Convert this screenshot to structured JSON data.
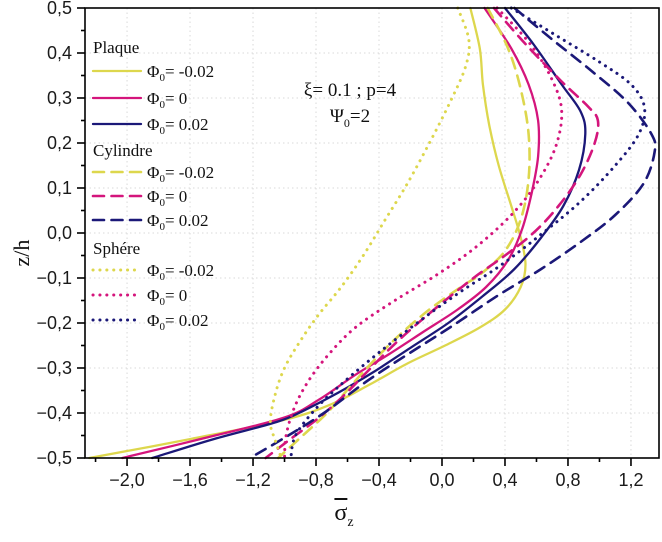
{
  "figure": {
    "background": "#ffffff",
    "plot_border_color": "#000000",
    "grid_color": "#d9d9d9",
    "tick_color": "#000000",
    "tick_label_color": "#1a1a1a"
  },
  "chart_data": {
    "type": "line",
    "title": "",
    "xlabel": {
      "base": "σ",
      "overbar": true,
      "sub": "z"
    },
    "ylabel": "z/h",
    "annotation": {
      "line1": "ξ= 0.1 ; p=4",
      "line2": {
        "sym": "Ψ",
        "sub": "0",
        "rest": "=2"
      }
    },
    "xlim": [
      -2.267,
      1.378
    ],
    "ylim": [
      -0.5,
      0.5
    ],
    "x_major_ticks": [
      -2.0,
      -1.6,
      -1.2,
      -0.8,
      -0.4,
      0.0,
      0.4,
      0.8,
      1.2
    ],
    "x_tick_labels": [
      "−2,0",
      "−1,6",
      "−1,2",
      "−0,8",
      "−0,4",
      "0,0",
      "0,4",
      "0,8",
      "1,2"
    ],
    "x_minor_ticks": [
      -2.2,
      -1.8,
      -1.4,
      -1.0,
      -0.6,
      -0.2,
      0.2,
      0.6,
      1.0
    ],
    "y_major_ticks": [
      0.5,
      0.4,
      0.3,
      0.2,
      0.1,
      0.0,
      -0.1,
      -0.2,
      -0.3,
      -0.4,
      -0.5
    ],
    "y_tick_labels": [
      "0,5",
      "0,4",
      "0,3",
      "0,2",
      "0,1",
      "0,0",
      "−0,1",
      "−0,2",
      "−0,3",
      "−0,4",
      "−0,5"
    ],
    "y_minor_ticks": [
      0.45,
      0.35,
      0.25,
      0.15,
      0.05,
      -0.05,
      -0.15,
      -0.25,
      -0.35,
      -0.45
    ],
    "grid": {
      "vertical_at": [
        -2.0,
        -1.6,
        -1.2,
        -0.8,
        -0.4,
        0.0,
        0.4,
        0.8,
        1.2
      ],
      "horizontal_at": [
        0.4,
        0.3,
        0.2,
        0.1,
        0.0,
        -0.1,
        -0.2,
        -0.3,
        -0.4
      ]
    },
    "colors": {
      "phi_neg": "#ddd74d",
      "phi_zero": "#d4157c",
      "phi_pos": "#1b1878"
    },
    "legend_groups": [
      {
        "name": "Plaque",
        "style": "solid",
        "entries": [
          {
            "sym": "Φ",
            "sub": "0",
            "label": "= -0.02",
            "color": "#ddd74d",
            "series_key": "plaque_neg"
          },
          {
            "sym": "Φ",
            "sub": "0",
            "label": "= 0",
            "color": "#d4157c",
            "series_key": "plaque_zero"
          },
          {
            "sym": "Φ",
            "sub": "0",
            "label": "= 0.02",
            "color": "#1b1878",
            "series_key": "plaque_pos"
          }
        ]
      },
      {
        "name": "Cylindre",
        "style": "dashed",
        "entries": [
          {
            "sym": "Φ",
            "sub": "0",
            "label": "= -0.02",
            "color": "#ddd74d",
            "series_key": "cyl_neg"
          },
          {
            "sym": "Φ",
            "sub": "0",
            "label": "= 0",
            "color": "#d4157c",
            "series_key": "cyl_zero"
          },
          {
            "sym": "Φ",
            "sub": "0",
            "label": "= 0.02",
            "color": "#1b1878",
            "series_key": "cyl_pos"
          }
        ]
      },
      {
        "name": "Sphére",
        "style": "dotted",
        "entries": [
          {
            "sym": "Φ",
            "sub": "0",
            "label": "= -0.02",
            "color": "#ddd74d",
            "series_key": "sph_neg"
          },
          {
            "sym": "Φ",
            "sub": "0",
            "label": "= 0",
            "color": "#d4157c",
            "series_key": "sph_zero"
          },
          {
            "sym": "Φ",
            "sub": "0",
            "label": "= 0.02",
            "color": "#1b1878",
            "series_key": "sph_pos"
          }
        ]
      }
    ],
    "series": [
      {
        "key": "plaque_neg",
        "group": "Plaque",
        "phi": "-0.02",
        "style": "solid",
        "color": "#ddd74d",
        "points": [
          [
            0.18,
            0.5
          ],
          [
            0.24,
            0.41
          ],
          [
            0.26,
            0.33
          ],
          [
            0.3,
            0.24
          ],
          [
            0.36,
            0.15
          ],
          [
            0.44,
            0.06
          ],
          [
            0.5,
            -0.01
          ],
          [
            0.53,
            -0.07
          ],
          [
            0.5,
            -0.12
          ],
          [
            0.4,
            -0.17
          ],
          [
            0.24,
            -0.21
          ],
          [
            0.02,
            -0.25
          ],
          [
            -0.22,
            -0.29
          ],
          [
            -0.45,
            -0.335
          ],
          [
            -0.7,
            -0.38
          ],
          [
            -1.0,
            -0.415
          ],
          [
            -1.6,
            -0.458
          ],
          [
            -2.24,
            -0.5
          ]
        ]
      },
      {
        "key": "plaque_zero",
        "group": "Plaque",
        "phi": "0",
        "style": "solid",
        "color": "#d4157c",
        "points": [
          [
            0.27,
            0.5
          ],
          [
            0.44,
            0.41
          ],
          [
            0.55,
            0.33
          ],
          [
            0.61,
            0.25
          ],
          [
            0.61,
            0.17
          ],
          [
            0.57,
            0.09
          ],
          [
            0.51,
            0.01
          ],
          [
            0.42,
            -0.06
          ],
          [
            0.28,
            -0.12
          ],
          [
            0.1,
            -0.17
          ],
          [
            -0.12,
            -0.22
          ],
          [
            -0.34,
            -0.27
          ],
          [
            -0.55,
            -0.315
          ],
          [
            -0.78,
            -0.37
          ],
          [
            -1.0,
            -0.41
          ],
          [
            -1.5,
            -0.455
          ],
          [
            -2.03,
            -0.5
          ]
        ]
      },
      {
        "key": "plaque_pos",
        "group": "Plaque",
        "phi": "0.02",
        "style": "solid",
        "color": "#1b1878",
        "points": [
          [
            0.4,
            0.5
          ],
          [
            0.58,
            0.42
          ],
          [
            0.76,
            0.33
          ],
          [
            0.88,
            0.27
          ],
          [
            0.91,
            0.22
          ],
          [
            0.87,
            0.14
          ],
          [
            0.77,
            0.06
          ],
          [
            0.63,
            -0.01
          ],
          [
            0.46,
            -0.08
          ],
          [
            0.26,
            -0.14
          ],
          [
            0.04,
            -0.2
          ],
          [
            -0.2,
            -0.255
          ],
          [
            -0.44,
            -0.31
          ],
          [
            -0.66,
            -0.355
          ],
          [
            -0.88,
            -0.395
          ],
          [
            -1.05,
            -0.42
          ],
          [
            -1.45,
            -0.458
          ],
          [
            -1.84,
            -0.5
          ]
        ]
      },
      {
        "key": "cyl_neg",
        "group": "Cylindre",
        "phi": "-0.02",
        "style": "dashed",
        "color": "#ddd74d",
        "points": [
          [
            0.29,
            0.5
          ],
          [
            0.42,
            0.41
          ],
          [
            0.5,
            0.32
          ],
          [
            0.55,
            0.22
          ],
          [
            0.55,
            0.12
          ],
          [
            0.5,
            0.03
          ],
          [
            0.4,
            -0.04
          ],
          [
            0.25,
            -0.09
          ],
          [
            0.12,
            -0.12
          ],
          [
            -0.08,
            -0.17
          ],
          [
            -0.28,
            -0.23
          ],
          [
            -0.45,
            -0.29
          ],
          [
            -0.58,
            -0.34
          ],
          [
            -0.73,
            -0.4
          ],
          [
            -0.9,
            -0.455
          ],
          [
            -1.04,
            -0.5
          ]
        ]
      },
      {
        "key": "cyl_zero",
        "group": "Cylindre",
        "phi": "0",
        "style": "dashed",
        "color": "#d4157c",
        "points": [
          [
            0.33,
            0.5
          ],
          [
            0.53,
            0.42
          ],
          [
            0.75,
            0.34
          ],
          [
            0.93,
            0.28
          ],
          [
            0.99,
            0.25
          ],
          [
            0.97,
            0.2
          ],
          [
            0.88,
            0.13
          ],
          [
            0.74,
            0.06
          ],
          [
            0.58,
            0.0
          ],
          [
            0.4,
            -0.05
          ],
          [
            0.2,
            -0.1
          ],
          [
            -0.05,
            -0.17
          ],
          [
            -0.28,
            -0.24
          ],
          [
            -0.48,
            -0.31
          ],
          [
            -0.62,
            -0.36
          ],
          [
            -0.78,
            -0.41
          ],
          [
            -0.97,
            -0.46
          ],
          [
            -1.12,
            -0.5
          ]
        ]
      },
      {
        "key": "cyl_pos",
        "group": "Cylindre",
        "phi": "0.02",
        "style": "dashed",
        "color": "#1b1878",
        "points": [
          [
            0.46,
            0.5
          ],
          [
            0.7,
            0.43
          ],
          [
            0.95,
            0.36
          ],
          [
            1.18,
            0.29
          ],
          [
            1.33,
            0.22
          ],
          [
            1.35,
            0.18
          ],
          [
            1.28,
            0.11
          ],
          [
            1.1,
            0.04
          ],
          [
            0.88,
            -0.02
          ],
          [
            0.63,
            -0.08
          ],
          [
            0.35,
            -0.14
          ],
          [
            0.05,
            -0.21
          ],
          [
            -0.22,
            -0.27
          ],
          [
            -0.48,
            -0.33
          ],
          [
            -0.75,
            -0.4
          ],
          [
            -1.0,
            -0.455
          ],
          [
            -1.22,
            -0.5
          ]
        ]
      },
      {
        "key": "sph_neg",
        "group": "Sphére",
        "phi": "-0.02",
        "style": "dotted",
        "color": "#ddd74d",
        "points": [
          [
            0.1,
            0.5
          ],
          [
            0.17,
            0.43
          ],
          [
            0.15,
            0.37
          ],
          [
            0.05,
            0.29
          ],
          [
            -0.08,
            0.2
          ],
          [
            -0.22,
            0.11
          ],
          [
            -0.36,
            0.03
          ],
          [
            -0.5,
            -0.05
          ],
          [
            -0.64,
            -0.12
          ],
          [
            -0.78,
            -0.18
          ],
          [
            -0.9,
            -0.24
          ],
          [
            -1.0,
            -0.3
          ],
          [
            -1.06,
            -0.36
          ],
          [
            -1.09,
            -0.42
          ],
          [
            -1.06,
            -0.46
          ],
          [
            -1.02,
            -0.5
          ]
        ]
      },
      {
        "key": "sph_zero",
        "group": "Sphére",
        "phi": "0",
        "style": "dotted",
        "color": "#d4157c",
        "points": [
          [
            0.35,
            0.5
          ],
          [
            0.56,
            0.42
          ],
          [
            0.7,
            0.34
          ],
          [
            0.76,
            0.27
          ],
          [
            0.72,
            0.19
          ],
          [
            0.6,
            0.11
          ],
          [
            0.44,
            0.04
          ],
          [
            0.22,
            -0.03
          ],
          [
            -0.02,
            -0.09
          ],
          [
            -0.3,
            -0.15
          ],
          [
            -0.55,
            -0.21
          ],
          [
            -0.72,
            -0.27
          ],
          [
            -0.85,
            -0.33
          ],
          [
            -0.94,
            -0.39
          ],
          [
            -0.99,
            -0.45
          ],
          [
            -1.0,
            -0.5
          ]
        ]
      },
      {
        "key": "sph_pos",
        "group": "Sphére",
        "phi": "0.02",
        "style": "dotted",
        "color": "#1b1878",
        "points": [
          [
            0.44,
            0.5
          ],
          [
            0.72,
            0.44
          ],
          [
            1.0,
            0.38
          ],
          [
            1.2,
            0.33
          ],
          [
            1.285,
            0.28
          ],
          [
            1.25,
            0.22
          ],
          [
            1.1,
            0.15
          ],
          [
            0.88,
            0.07
          ],
          [
            0.64,
            0.0
          ],
          [
            0.38,
            -0.07
          ],
          [
            0.12,
            -0.13
          ],
          [
            -0.12,
            -0.19
          ],
          [
            -0.38,
            -0.26
          ],
          [
            -0.62,
            -0.33
          ],
          [
            -0.8,
            -0.39
          ],
          [
            -0.93,
            -0.45
          ],
          [
            -0.96,
            -0.5
          ]
        ]
      }
    ]
  }
}
